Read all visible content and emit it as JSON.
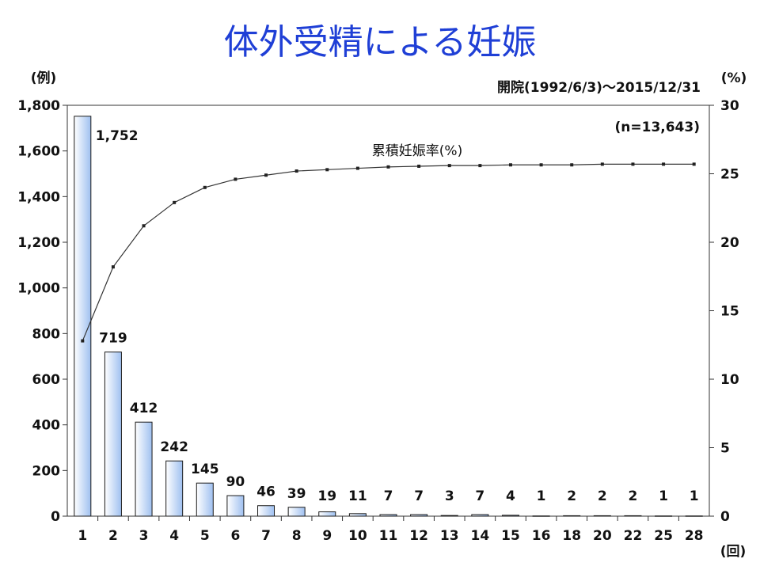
{
  "chart_data": {
    "type": "bar",
    "title": "体外受精による妊娠",
    "subtitle": "開院(1992/6/3)～2015/12/31",
    "n_label": "(n=13,643)",
    "ylabel_left": "(例)",
    "ylabel_right": "(%)",
    "xlabel": "(回)",
    "categories": [
      "1",
      "2",
      "3",
      "4",
      "5",
      "6",
      "7",
      "8",
      "9",
      "10",
      "11",
      "12",
      "13",
      "14",
      "15",
      "16",
      "18",
      "20",
      "22",
      "25",
      "28"
    ],
    "series": [
      {
        "type": "bar",
        "axis": "left",
        "values": [
          1752,
          719,
          412,
          242,
          145,
          90,
          46,
          39,
          19,
          11,
          7,
          7,
          3,
          7,
          4,
          1,
          2,
          2,
          2,
          1,
          1
        ],
        "labels": [
          "1,752",
          "719",
          "412",
          "242",
          "145",
          "90",
          "46",
          "39",
          "19",
          "11",
          "7",
          "7",
          "3",
          "7",
          "4",
          "1",
          "2",
          "2",
          "2",
          "1",
          "1"
        ]
      },
      {
        "type": "line",
        "axis": "right",
        "name": "累積妊娠率(%)",
        "values": [
          12.8,
          18.2,
          21.2,
          22.9,
          24.0,
          24.6,
          24.9,
          25.2,
          25.3,
          25.4,
          25.5,
          25.55,
          25.6,
          25.6,
          25.65,
          25.65,
          25.65,
          25.7,
          25.7,
          25.7,
          25.7
        ]
      }
    ],
    "ylim_left": [
      0,
      1800
    ],
    "ylim_right": [
      0,
      30
    ],
    "yticks_left": [
      "0",
      "200",
      "400",
      "600",
      "800",
      "1,000",
      "1,200",
      "1,400",
      "1,600",
      "1,800"
    ],
    "yticks_right": [
      "0",
      "5",
      "10",
      "15",
      "20",
      "25",
      "30"
    ],
    "colors": {
      "title": "#1f3fd6",
      "bar_fill_light": "#ffffff",
      "bar_fill_dark": "#9fc0f0",
      "bar_stroke": "#1a1a1a",
      "line": "#333333"
    }
  }
}
